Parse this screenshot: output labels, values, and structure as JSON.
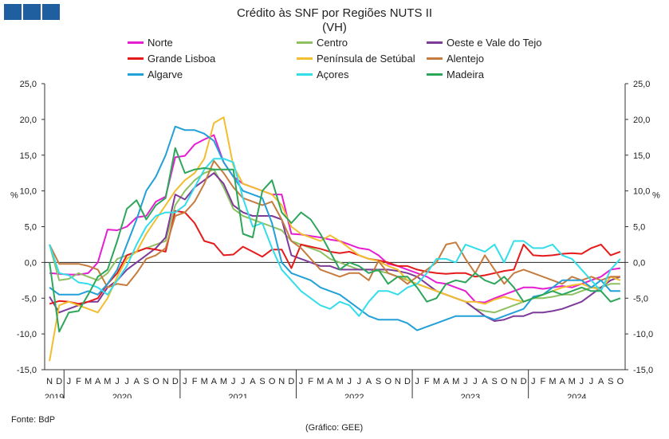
{
  "header": {
    "logo_icon": "bdp-squares-logo"
  },
  "chart_data": {
    "type": "line",
    "title": "Crédito às SNF por Regiões NUTS II",
    "subtitle": "(VH)",
    "ylabel": "%",
    "ylabel_right": "%",
    "ylim": [
      -15,
      25
    ],
    "yticks": [
      "-15,0",
      "-10,0",
      "-5,0",
      "0,0",
      "5,0",
      "10,0",
      "15,0",
      "20,0",
      "25,0"
    ],
    "month_labels": [
      "N",
      "D",
      "J",
      "F",
      "M",
      "A",
      "M",
      "J",
      "J",
      "A",
      "S",
      "O",
      "N",
      "D",
      "J",
      "F",
      "M",
      "A",
      "M",
      "J",
      "J",
      "A",
      "S",
      "O",
      "N",
      "D",
      "J",
      "F",
      "M",
      "A",
      "M",
      "J",
      "J",
      "A",
      "S",
      "O",
      "N",
      "D",
      "J",
      "F",
      "M",
      "A",
      "M",
      "J",
      "J",
      "A",
      "S",
      "O",
      "N",
      "D",
      "J",
      "F",
      "M",
      "A",
      "M",
      "J",
      "J",
      "A",
      "S",
      "O"
    ],
    "year_labels": [
      "2019",
      "2020",
      "2021",
      "2022",
      "2023",
      "2024"
    ],
    "x": [
      "2019-11",
      "2019-12",
      "2020-01",
      "2020-02",
      "2020-03",
      "2020-04",
      "2020-05",
      "2020-06",
      "2020-07",
      "2020-08",
      "2020-09",
      "2020-10",
      "2020-11",
      "2020-12",
      "2021-01",
      "2021-02",
      "2021-03",
      "2021-04",
      "2021-05",
      "2021-06",
      "2021-07",
      "2021-08",
      "2021-09",
      "2021-10",
      "2021-11",
      "2021-12",
      "2022-01",
      "2022-02",
      "2022-03",
      "2022-04",
      "2022-05",
      "2022-06",
      "2022-07",
      "2022-08",
      "2022-09",
      "2022-10",
      "2022-11",
      "2022-12",
      "2023-01",
      "2023-02",
      "2023-03",
      "2023-04",
      "2023-05",
      "2023-06",
      "2023-07",
      "2023-08",
      "2023-09",
      "2023-10",
      "2023-11",
      "2023-12",
      "2024-01",
      "2024-02",
      "2024-03",
      "2024-04",
      "2024-05",
      "2024-06",
      "2024-07",
      "2024-08",
      "2024-09",
      "2024-10"
    ],
    "grid": false,
    "legend_position": "top",
    "series": [
      {
        "name": "Norte",
        "color": "#e61ed2",
        "values": [
          -1.5,
          -1.6,
          -1.7,
          -1.7,
          -1.5,
          0.0,
          4.6,
          4.5,
          5.0,
          6.3,
          6.5,
          8.5,
          9.2,
          14.7,
          14.9,
          16.5,
          17.2,
          17.8,
          14.0,
          12.0,
          11.0,
          10.5,
          10.0,
          9.5,
          9.5,
          4.0,
          3.9,
          3.7,
          3.5,
          3.2,
          3.0,
          2.5,
          2.0,
          1.8,
          1.0,
          -0.2,
          -0.5,
          -1.0,
          -1.5,
          -2.0,
          -2.8,
          -3.0,
          -3.5,
          -4.0,
          -5.5,
          -5.6,
          -5.0,
          -4.5,
          -4.0,
          -3.5,
          -3.5,
          -3.7,
          -3.5,
          -3.3,
          -3.5,
          -3.0,
          -2.5,
          -2.0,
          -1.0,
          -0.8
        ]
      },
      {
        "name": "Centro",
        "color": "#8fc062",
        "values": [
          2.5,
          -2.5,
          -2.3,
          -1.5,
          -2.0,
          -2.5,
          -1.5,
          0.5,
          1.0,
          1.5,
          2.0,
          2.5,
          3.0,
          8.0,
          10.0,
          11.5,
          12.5,
          13.0,
          10.5,
          7.5,
          6.5,
          6.0,
          5.5,
          5.0,
          4.5,
          3.0,
          2.5,
          2.0,
          1.5,
          0.5,
          0.0,
          -0.5,
          -1.0,
          -1.0,
          -1.2,
          -1.5,
          -2.0,
          -2.5,
          -3.0,
          -3.5,
          -4.0,
          -4.5,
          -5.0,
          -5.5,
          -6.5,
          -6.8,
          -7.0,
          -6.5,
          -6.0,
          -5.5,
          -5.0,
          -5.0,
          -4.8,
          -4.5,
          -4.5,
          -4.0,
          -3.5,
          -3.5,
          -3.0,
          -3.0
        ]
      },
      {
        "name": "Oeste e Vale do Tejo",
        "color": "#7e3b99",
        "values": [
          -4.8,
          -7.0,
          -6.5,
          -6.0,
          -5.5,
          -5.5,
          -3.5,
          -2.5,
          -1.0,
          0.0,
          1.0,
          2.0,
          3.5,
          9.5,
          8.8,
          10.5,
          11.5,
          12.5,
          11.0,
          8.0,
          7.0,
          6.5,
          6.5,
          6.5,
          6.0,
          1.0,
          0.5,
          0.0,
          -0.5,
          -0.5,
          -1.0,
          -1.0,
          -1.0,
          -1.0,
          -1.0,
          -1.0,
          -1.2,
          -1.5,
          -2.0,
          -3.0,
          -4.0,
          -4.5,
          -5.0,
          -5.5,
          -6.5,
          -7.5,
          -8.2,
          -8.0,
          -7.5,
          -7.5,
          -7.0,
          -7.0,
          -6.8,
          -6.5,
          -6.0,
          -5.5,
          -4.5,
          -3.5,
          -2.5,
          -2.0
        ]
      },
      {
        "name": "Grande Lisboa",
        "color": "#e51b1b",
        "values": [
          -5.8,
          -5.4,
          -5.5,
          -5.8,
          -5.5,
          -5.0,
          -3.0,
          -1.5,
          1.0,
          1.5,
          2.0,
          1.8,
          1.5,
          7.2,
          7.0,
          5.5,
          3.0,
          2.6,
          1.0,
          1.1,
          2.2,
          1.5,
          0.8,
          1.8,
          1.8,
          -0.8,
          2.5,
          2.2,
          1.9,
          1.5,
          1.3,
          1.5,
          1.0,
          0.5,
          0.3,
          0.0,
          -0.5,
          -0.5,
          -1.0,
          -1.3,
          -1.5,
          -1.6,
          -1.5,
          -1.5,
          -2.0,
          -1.8,
          -1.5,
          -1.2,
          -1.0,
          2.5,
          1.0,
          0.9,
          1.0,
          1.2,
          1.3,
          1.2,
          2.0,
          2.5,
          1.0,
          1.5
        ]
      },
      {
        "name": "Península de Setúbal",
        "color": "#f2bd2e",
        "values": [
          -13.8,
          -6.0,
          -5.5,
          -6.0,
          -6.5,
          -7.0,
          -5.0,
          -2.0,
          0.5,
          1.5,
          4.0,
          6.0,
          8.0,
          10.0,
          11.5,
          12.5,
          14.5,
          19.5,
          20.3,
          13.5,
          11.0,
          10.5,
          10.0,
          9.5,
          8.0,
          5.0,
          4.0,
          3.5,
          3.0,
          3.8,
          3.0,
          2.0,
          1.0,
          0.5,
          0.2,
          -0.5,
          -1.0,
          -2.5,
          -3.0,
          -3.5,
          -4.0,
          -4.5,
          -5.0,
          -5.5,
          -5.5,
          -5.8,
          -5.2,
          -4.8,
          -5.2,
          -5.5,
          -5.0,
          -4.5,
          -4.0,
          -3.5,
          -3.2,
          -3.0,
          -3.5,
          -3.8,
          -2.0,
          -2.5
        ]
      },
      {
        "name": "Alentejo",
        "color": "#c67c3e",
        "values": [
          2.5,
          -0.2,
          -0.2,
          -0.2,
          -0.5,
          -1.0,
          -3.5,
          -3.0,
          -3.2,
          -1.5,
          0.5,
          1.0,
          2.0,
          6.5,
          7.0,
          8.5,
          11.0,
          14.2,
          12.5,
          10.5,
          9.0,
          8.5,
          8.0,
          8.5,
          6.0,
          3.0,
          2.0,
          0.5,
          -1.0,
          -1.5,
          -2.0,
          -1.5,
          -1.5,
          -2.5,
          0.2,
          -1.5,
          -2.0,
          -3.0,
          -2.0,
          -1.0,
          0.0,
          2.5,
          2.8,
          0.5,
          -1.5,
          1.0,
          -1.0,
          -3.0,
          -1.5,
          -1.0,
          -1.5,
          -2.0,
          -2.5,
          -3.0,
          -2.0,
          -2.5,
          -2.0,
          -2.5,
          -2.0,
          -2.0
        ]
      },
      {
        "name": "Algarve",
        "color": "#23a0d8",
        "values": [
          -3.5,
          -4.5,
          -4.5,
          -4.5,
          -4.0,
          -4.5,
          -3.0,
          -1.0,
          2.5,
          6.0,
          10.0,
          12.0,
          15.0,
          19.0,
          18.5,
          18.5,
          18.0,
          17.0,
          14.0,
          12.0,
          10.0,
          9.5,
          9.0,
          5.5,
          0.0,
          -1.5,
          -2.0,
          -2.5,
          -3.5,
          -4.0,
          -4.5,
          -5.5,
          -6.5,
          -7.5,
          -8.0,
          -8.0,
          -8.0,
          -8.5,
          -9.5,
          -9.0,
          -8.5,
          -8.0,
          -7.5,
          -7.5,
          -7.5,
          -7.5,
          -8.0,
          -7.5,
          -7.0,
          -6.5,
          -4.8,
          -4.5,
          -3.5,
          -2.5,
          -2.5,
          -2.5,
          -3.5,
          -2.5,
          -4.0,
          -4.0
        ]
      },
      {
        "name": "Açores",
        "color": "#33ddea",
        "values": [
          2.5,
          -1.5,
          -1.8,
          -2.8,
          -3.0,
          -3.5,
          -4.5,
          -2.5,
          -0.5,
          2.5,
          5.0,
          6.5,
          7.0,
          7.0,
          8.0,
          10.5,
          13.0,
          14.5,
          14.5,
          14.0,
          9.0,
          5.0,
          5.5,
          2.0,
          -1.0,
          -2.5,
          -4.0,
          -5.0,
          -6.0,
          -6.5,
          -5.5,
          -6.0,
          -7.5,
          -5.5,
          -4.0,
          -4.0,
          -4.5,
          -3.5,
          -3.0,
          -1.5,
          0.5,
          0.5,
          0.0,
          2.5,
          2.0,
          1.5,
          2.5,
          0.0,
          3.0,
          3.0,
          2.0,
          2.0,
          2.5,
          1.0,
          0.5,
          -1.0,
          -2.5,
          -4.0,
          -1.0,
          0.5
        ]
      },
      {
        "name": "Madeira",
        "color": "#2ea65a",
        "values": [
          0.0,
          -9.7,
          -7.0,
          -6.8,
          -4.5,
          -2.0,
          -1.0,
          3.0,
          7.5,
          8.7,
          6.0,
          8.0,
          9.0,
          16.0,
          12.5,
          13.0,
          13.2,
          13.0,
          13.0,
          13.0,
          4.0,
          3.5,
          10.0,
          11.5,
          7.0,
          5.5,
          7.0,
          6.0,
          4.0,
          1.5,
          -1.0,
          0.0,
          -0.5,
          -1.5,
          -1.0,
          -3.0,
          -2.0,
          -2.0,
          -3.5,
          -5.5,
          -5.0,
          -3.0,
          -2.5,
          -2.8,
          -1.5,
          -2.5,
          -3.0,
          -2.0,
          -3.5,
          -5.5,
          -5.0,
          -4.5,
          -4.0,
          -4.5,
          -4.0,
          -3.5,
          -4.0,
          -4.0,
          -5.5,
          -5.0
        ]
      }
    ]
  },
  "footer": {
    "source": "Fonte: BdP",
    "credit": "(Gráfico: GEE)"
  }
}
